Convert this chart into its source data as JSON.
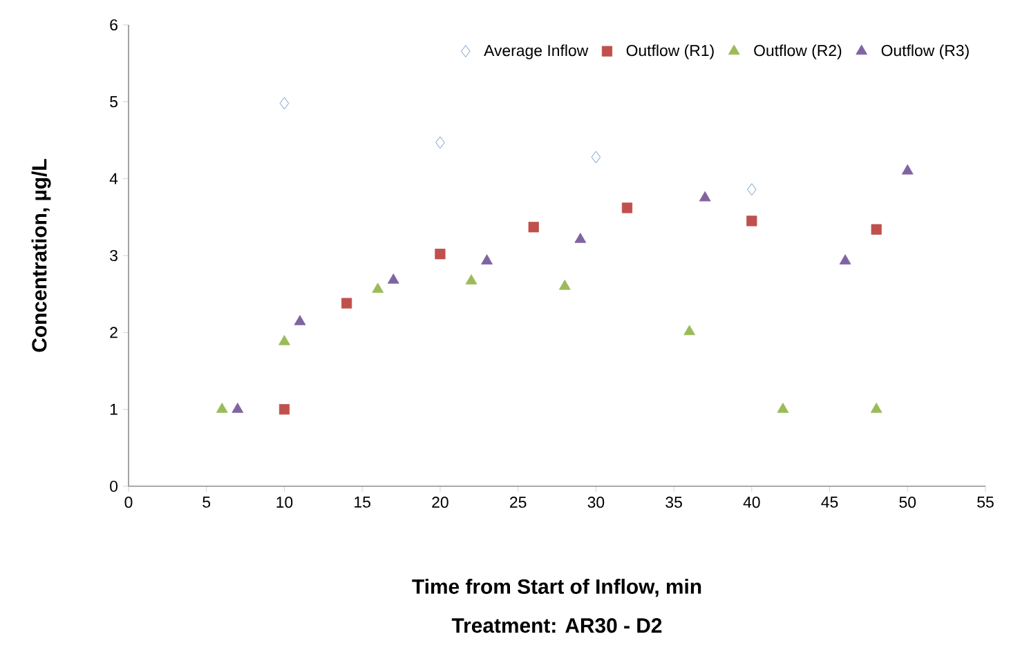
{
  "chart_data": {
    "type": "scatter",
    "xlabel": "Time from Start of Inflow, min",
    "ylabel": "Concentration, µg/L",
    "annotations": [
      "Treatment: AR30 - D2"
    ],
    "xlim": [
      0,
      55
    ],
    "xticks": [
      0,
      5,
      10,
      15,
      20,
      25,
      30,
      35,
      40,
      45,
      50,
      55
    ],
    "ylim": [
      0,
      6
    ],
    "yticks": [
      0,
      1,
      2,
      3,
      4,
      5,
      6
    ],
    "grid": false,
    "legend": "top right",
    "series": [
      {
        "name": "Average Inflow",
        "color": "#4f81bd",
        "marker": "diamond",
        "x": [
          10,
          20,
          30,
          40
        ],
        "values": [
          4.98,
          4.47,
          4.28,
          3.86
        ]
      },
      {
        "name": "Outflow (R1)",
        "color": "#c0504d",
        "marker": "square",
        "x": [
          10,
          14,
          20,
          26,
          32,
          40,
          48
        ],
        "values": [
          1.0,
          2.38,
          3.02,
          3.37,
          3.62,
          3.45,
          3.34
        ]
      },
      {
        "name": "Outflow (R2)",
        "color": "#9bbb59",
        "marker": "triangle",
        "x": [
          6,
          10,
          16,
          22,
          28,
          36,
          42,
          48
        ],
        "values": [
          1.0,
          1.88,
          2.56,
          2.67,
          2.6,
          2.01,
          1.0,
          1.0
        ]
      },
      {
        "name": "Outflow (R3)",
        "color": "#8064a2",
        "marker": "triangle",
        "x": [
          7,
          11,
          17,
          23,
          29,
          37,
          46,
          50
        ],
        "values": [
          1.0,
          2.14,
          2.68,
          2.93,
          3.21,
          3.75,
          2.93,
          4.1
        ]
      }
    ]
  }
}
